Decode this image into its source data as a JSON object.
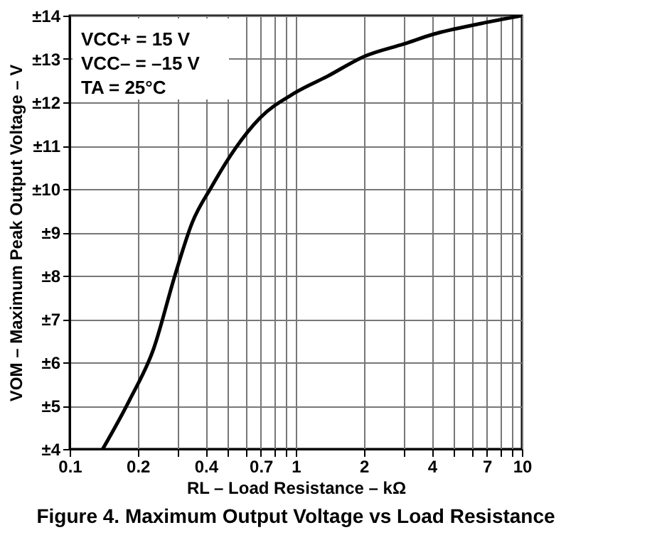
{
  "chart_data": {
    "type": "line",
    "title": "Figure 4. Maximum Output Voltage vs Load Resistance",
    "xlabel": "RL – Load Resistance – kΩ",
    "ylabel": "VOM – Maximum Peak Output Voltage – V",
    "annotations": [
      "VCC+ = 15 V",
      "VCC– = –15 V",
      "TA = 25°C"
    ],
    "log": "x",
    "grid": true,
    "marker": "none",
    "line_style": "solid",
    "xlim": [
      0.1,
      10
    ],
    "ylim": [
      4,
      14
    ],
    "xticks": [
      0.1,
      0.2,
      {
        "value": 0.3,
        "label": null
      },
      0.4,
      {
        "value": 0.5,
        "label": null
      },
      {
        "value": 0.6,
        "label": null
      },
      0.7,
      {
        "value": 0.8,
        "label": null
      },
      {
        "value": 0.9,
        "label": null
      },
      1,
      2,
      {
        "value": 3,
        "label": null
      },
      4,
      {
        "value": 5,
        "label": null
      },
      {
        "value": 6,
        "label": null
      },
      7,
      {
        "value": 8,
        "label": null
      },
      {
        "value": 9,
        "label": null
      },
      10
    ],
    "yticks": [
      {
        "value": 4,
        "label": "±4"
      },
      {
        "value": 5,
        "label": "±5"
      },
      {
        "value": 6,
        "label": "±6"
      },
      {
        "value": 7,
        "label": "±7"
      },
      {
        "value": 8,
        "label": "±8"
      },
      {
        "value": 9,
        "label": "±9"
      },
      {
        "value": 10,
        "label": "±10"
      },
      {
        "value": 11,
        "label": "±11"
      },
      {
        "value": 12,
        "label": "±12"
      },
      {
        "value": 13,
        "label": "±13"
      },
      {
        "value": 14,
        "label": "±14"
      }
    ],
    "series": [
      {
        "color": "#000000",
        "x": [
          0.14,
          0.184,
          0.235,
          0.293,
          0.348,
          0.424,
          0.541,
          0.692,
          1.0,
          1.38,
          1.99,
          3.02,
          4.05,
          6.62,
          10
        ],
        "values": [
          4,
          5.13,
          6.31,
          8.03,
          9.22,
          10.05,
          10.94,
          11.63,
          12.23,
          12.6,
          13.05,
          13.35,
          13.57,
          13.82,
          14
        ]
      }
    ]
  }
}
